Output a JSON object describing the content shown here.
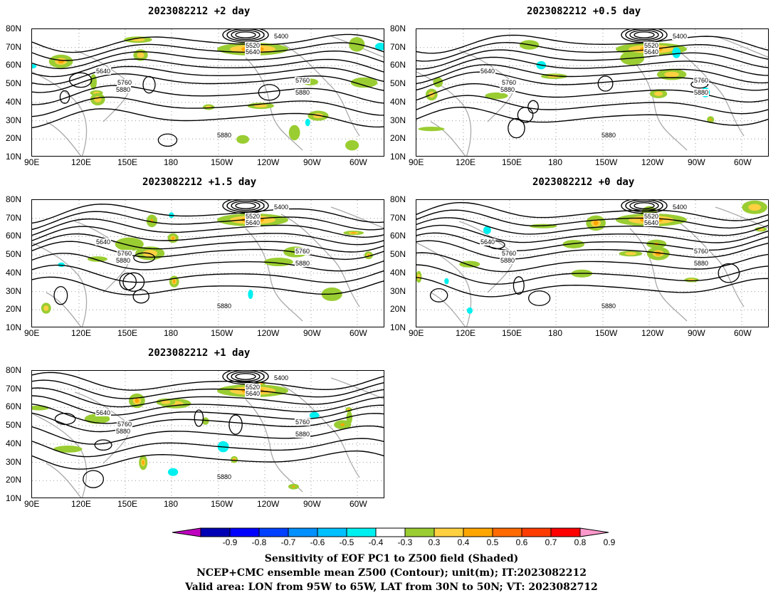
{
  "panels": [
    {
      "title": "2023082212 +2 day"
    },
    {
      "title": "2023082212 +0.5 day"
    },
    {
      "title": "2023082212 +1.5 day"
    },
    {
      "title": "2023082212 +0 day"
    },
    {
      "title": "2023082212 +1 day"
    }
  ],
  "lat_ticks": [
    "80N",
    "70N",
    "60N",
    "50N",
    "40N",
    "30N",
    "20N",
    "10N"
  ],
  "lon_ticks": [
    "90E",
    "120E",
    "150E",
    "180",
    "150W",
    "120W",
    "90W",
    "60W"
  ],
  "contour_labels": [
    "5400",
    "5520",
    "5640",
    "5760",
    "5880"
  ],
  "colorbar": {
    "ticks": [
      "-0.9",
      "-0.8",
      "-0.7",
      "-0.6",
      "-0.5",
      "-0.4",
      "-0.3",
      "0.3",
      "0.4",
      "0.5",
      "0.6",
      "0.7",
      "0.8",
      "0.9"
    ],
    "colors": [
      "#c000c0",
      "#0000b4",
      "#0000ff",
      "#0040ff",
      "#0090ff",
      "#00c0ff",
      "#00f0f0",
      "#ffffff",
      "#9acd32",
      "#ffd040",
      "#ffa500",
      "#ff6a00",
      "#ff3c00",
      "#ff0000",
      "#ff99cc"
    ]
  },
  "caption": {
    "line1": "Sensitivity of EOF PC1 to Z500 field (Shaded)",
    "line2": "NCEP+CMC ensemble mean Z500 (Contour); unit(m); IT:2023082212",
    "line3": "Valid area: LON from 95W to 65W, LAT from 30N to 50N; VT: 2023082712"
  }
}
